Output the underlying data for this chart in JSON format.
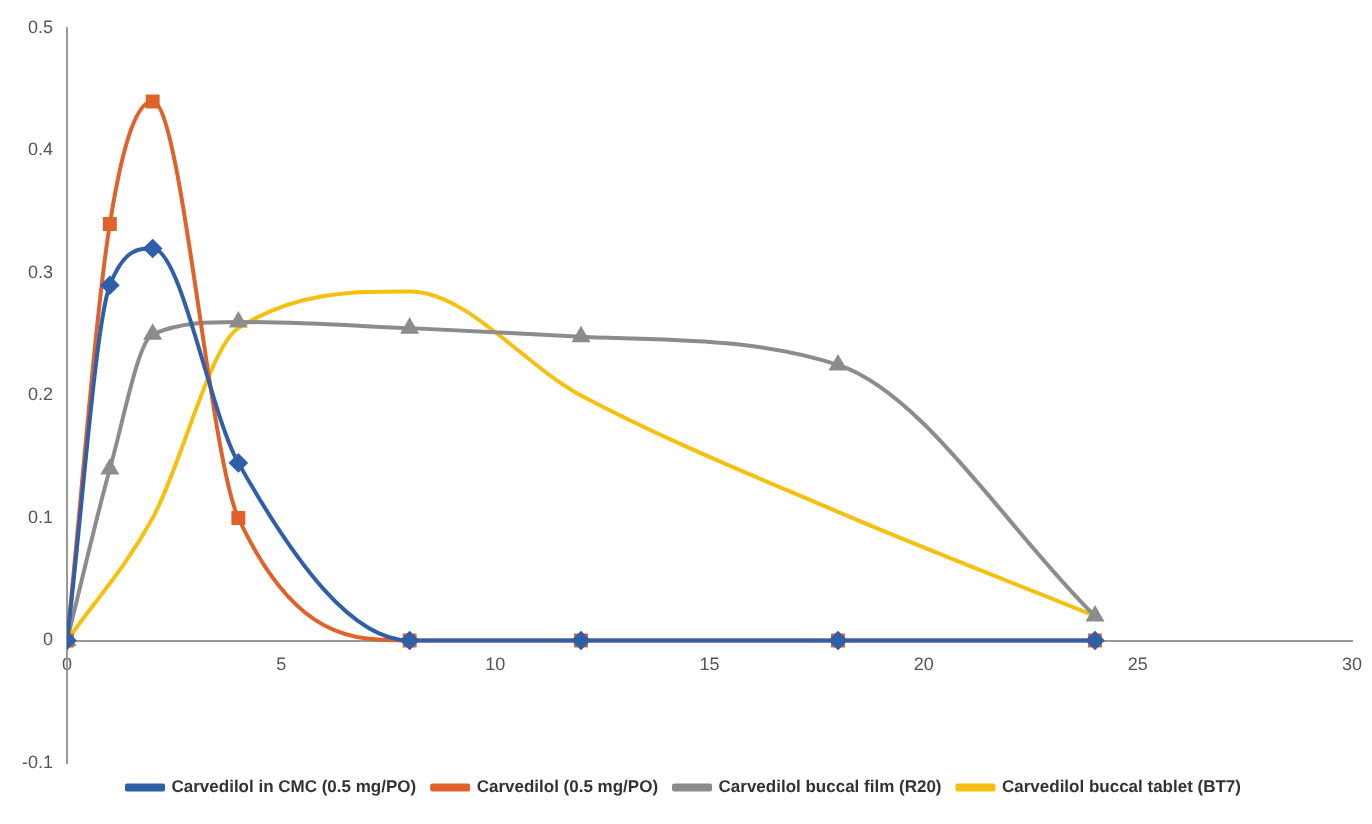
{
  "chart_data": {
    "type": "line",
    "x": [
      0,
      1,
      2,
      4,
      8,
      12,
      18,
      24
    ],
    "series": [
      {
        "name": "Carvedilol in CMC (0.5 mg/PO)",
        "color": "#2e5fa8",
        "marker": "diamond",
        "values": [
          0,
          0.29,
          0.32,
          0.145,
          0,
          0,
          0,
          0
        ]
      },
      {
        "name": "Carvedilol (0.5 mg/PO)",
        "color": "#e0622a",
        "marker": "square",
        "values": [
          0,
          0.34,
          0.44,
          0.1,
          0,
          0,
          0,
          0
        ]
      },
      {
        "name": "Carvedilol buccal film (R20)",
        "color": "#8c8c8c",
        "marker": "triangle",
        "values": [
          0,
          0.14,
          0.25,
          0.26,
          0.255,
          0.248,
          0.225,
          0.02
        ]
      },
      {
        "name": "Carvedilol buccal tablet (BT7)",
        "color": "#f5c010",
        "marker": "none",
        "x": [
          0,
          2,
          4,
          8,
          12,
          18,
          24
        ],
        "values": [
          0,
          0.1,
          0.255,
          0.285,
          0.2,
          0.105,
          0.02
        ]
      }
    ],
    "xlim": [
      0,
      30
    ],
    "xticks": [
      0,
      5,
      10,
      15,
      20,
      25,
      30
    ],
    "ylim": [
      -0.1,
      0.5
    ],
    "yticks": [
      -0.1,
      0,
      0.1,
      0.2,
      0.3,
      0.4,
      0.5
    ],
    "grid": false,
    "legend": "bottom"
  }
}
